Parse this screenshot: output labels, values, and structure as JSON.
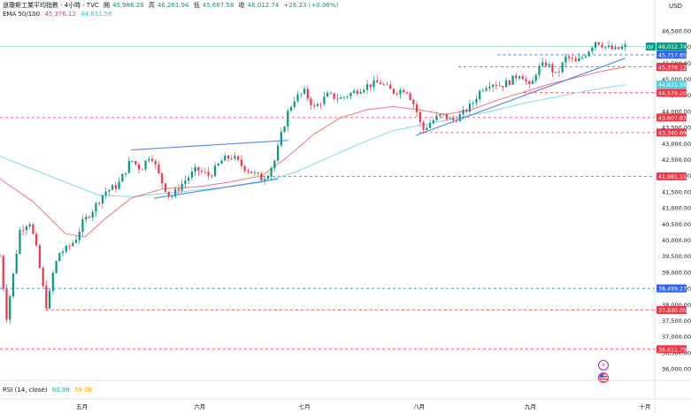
{
  "header": {
    "title": "道瓊斯工業平均指數 · 4小時 · TVC",
    "ohlc_open_label": "開",
    "ohlc_open": "45,986.28",
    "ohlc_high_label": "高",
    "ohlc_high": "46,261.94",
    "ohlc_low_label": "低",
    "ohlc_low": "45,687.58",
    "ohlc_close_label": "收",
    "ohlc_close": "46,012.74",
    "change": "+26.23 (+0.06%)"
  },
  "indicators": {
    "ema_label": "EMA 50/100",
    "ema50_value": "45,376.12",
    "ema100_value": "44,831.56",
    "rsi_label": "RSI (14, close)",
    "rsi_value1": "60.99",
    "rsi_value2": "59.08"
  },
  "currency": "USD",
  "colors": {
    "up": "#089981",
    "down": "#f23645",
    "ema50": "#f23645",
    "ema100": "#7fdbea",
    "trend": "#5b8def",
    "price_line": "#3ab6a8"
  },
  "icons": [
    "lightning-icon",
    "us-flag-icon"
  ],
  "chart_data": {
    "type": "candlestick",
    "title": "",
    "xlabel": "",
    "ylabel": "",
    "ylim": [
      35700,
      46800
    ],
    "yticks": [
      36000,
      36500,
      37000,
      37500,
      38000,
      38500,
      39000,
      39500,
      40000,
      40500,
      41000,
      41500,
      42000,
      42500,
      43000,
      43500,
      44000,
      44500,
      45000,
      45500,
      46000,
      46500
    ],
    "ytick_labels": [
      "36,000.00",
      "36,500.00",
      "37,000.00",
      "37,500.00",
      "38,000.00",
      "38,500.00",
      "39,000.00",
      "39,500.00",
      "40,000.00",
      "40,500.00",
      "41,000.00",
      "41,500.00",
      "42,000.00",
      "42,500.00",
      "43,000.00",
      "43,500.00",
      "44,000.00",
      "44,500.00",
      "45,000.00",
      "45,500.00",
      "46,000.00",
      "46,500.00"
    ],
    "months": [
      "五月",
      "六月",
      "七月",
      "八月",
      "九月",
      "十月"
    ],
    "month_positions": [
      0.125,
      0.305,
      0.465,
      0.64,
      0.81,
      0.985
    ],
    "close_path": [
      [
        0.0,
        39500
      ],
      [
        0.01,
        37600
      ],
      [
        0.02,
        38900
      ],
      [
        0.03,
        40300
      ],
      [
        0.045,
        40600
      ],
      [
        0.055,
        39800
      ],
      [
        0.065,
        38600
      ],
      [
        0.072,
        37830
      ],
      [
        0.08,
        38900
      ],
      [
        0.09,
        39600
      ],
      [
        0.1,
        39700
      ],
      [
        0.115,
        40000
      ],
      [
        0.125,
        40500
      ],
      [
        0.14,
        40900
      ],
      [
        0.16,
        41500
      ],
      [
        0.18,
        41700
      ],
      [
        0.2,
        42500
      ],
      [
        0.215,
        42200
      ],
      [
        0.23,
        42700
      ],
      [
        0.245,
        41900
      ],
      [
        0.26,
        41300
      ],
      [
        0.28,
        41800
      ],
      [
        0.3,
        42200
      ],
      [
        0.32,
        42000
      ],
      [
        0.34,
        42500
      ],
      [
        0.355,
        42600
      ],
      [
        0.37,
        42300
      ],
      [
        0.385,
        42100
      ],
      [
        0.4,
        41900
      ],
      [
        0.41,
        42100
      ],
      [
        0.42,
        42500
      ],
      [
        0.43,
        43300
      ],
      [
        0.44,
        44000
      ],
      [
        0.45,
        44400
      ],
      [
        0.465,
        44600
      ],
      [
        0.48,
        44100
      ],
      [
        0.5,
        44500
      ],
      [
        0.52,
        44400
      ],
      [
        0.54,
        44600
      ],
      [
        0.56,
        44800
      ],
      [
        0.58,
        44900
      ],
      [
        0.6,
        44600
      ],
      [
        0.62,
        44700
      ],
      [
        0.635,
        44100
      ],
      [
        0.645,
        43400
      ],
      [
        0.66,
        43700
      ],
      [
        0.675,
        43900
      ],
      [
        0.69,
        43700
      ],
      [
        0.705,
        43900
      ],
      [
        0.72,
        44200
      ],
      [
        0.735,
        44700
      ],
      [
        0.75,
        44900
      ],
      [
        0.765,
        44800
      ],
      [
        0.78,
        44950
      ],
      [
        0.795,
        45200
      ],
      [
        0.81,
        44700
      ],
      [
        0.82,
        45300
      ],
      [
        0.835,
        45500
      ],
      [
        0.85,
        45100
      ],
      [
        0.865,
        45700
      ],
      [
        0.88,
        45500
      ],
      [
        0.895,
        45800
      ],
      [
        0.91,
        46200
      ],
      [
        0.925,
        46000
      ],
      [
        0.94,
        45900
      ],
      [
        0.955,
        46012.74
      ]
    ],
    "ema50_path": [
      [
        0.0,
        41900
      ],
      [
        0.05,
        41200
      ],
      [
        0.1,
        40200
      ],
      [
        0.13,
        40100
      ],
      [
        0.16,
        40650
      ],
      [
        0.2,
        41300
      ],
      [
        0.25,
        41600
      ],
      [
        0.3,
        41650
      ],
      [
        0.35,
        41800
      ],
      [
        0.4,
        42000
      ],
      [
        0.44,
        42600
      ],
      [
        0.48,
        43300
      ],
      [
        0.52,
        43800
      ],
      [
        0.56,
        44050
      ],
      [
        0.6,
        44150
      ],
      [
        0.64,
        44050
      ],
      [
        0.68,
        43900
      ],
      [
        0.72,
        44050
      ],
      [
        0.76,
        44350
      ],
      [
        0.8,
        44600
      ],
      [
        0.84,
        44850
      ],
      [
        0.88,
        45050
      ],
      [
        0.92,
        45250
      ],
      [
        0.955,
        45376.12
      ]
    ],
    "ema100_path": [
      [
        0.0,
        42600
      ],
      [
        0.05,
        42200
      ],
      [
        0.1,
        41800
      ],
      [
        0.15,
        41400
      ],
      [
        0.2,
        41350
      ],
      [
        0.25,
        41450
      ],
      [
        0.3,
        41550
      ],
      [
        0.35,
        41650
      ],
      [
        0.4,
        41800
      ],
      [
        0.45,
        42100
      ],
      [
        0.5,
        42550
      ],
      [
        0.55,
        43000
      ],
      [
        0.6,
        43400
      ],
      [
        0.65,
        43600
      ],
      [
        0.7,
        43800
      ],
      [
        0.75,
        44000
      ],
      [
        0.8,
        44250
      ],
      [
        0.85,
        44450
      ],
      [
        0.9,
        44650
      ],
      [
        0.955,
        44831.56
      ]
    ],
    "trendlines": [
      {
        "from": [
          0.2,
          42800
        ],
        "to": [
          0.44,
          43100
        ]
      },
      {
        "from": [
          0.235,
          41300
        ],
        "to": [
          0.425,
          41900
        ]
      },
      {
        "from": [
          0.635,
          43250
        ],
        "to": [
          0.955,
          45650
        ]
      }
    ],
    "horizontal_levels": [
      {
        "value": 45757.85,
        "label": "45,757.85",
        "color": "#2962ff",
        "from": 0.76
      },
      {
        "value": 45384.51,
        "label": "45,384.51",
        "color": "#f23645",
        "from": 0.7
      },
      {
        "value": 44579.2,
        "label": "44,579.20",
        "color": "#f23645",
        "from": 0.8
      },
      {
        "value": 43807.83,
        "label": "43,807.83",
        "color": "#f23645",
        "from": 0.0
      },
      {
        "value": 43340.69,
        "label": "43,340.69",
        "color": "#f23645",
        "from": 0.64
      },
      {
        "value": 41981.15,
        "label": "41,981.15",
        "color": "#f23645",
        "from": 0.4
      },
      {
        "value": 38499.27,
        "label": "38,499.27",
        "color": "#2962ff",
        "from": 0.0
      },
      {
        "value": 37830.0,
        "label": "37,830.00",
        "color": "#f23645",
        "from": 0.07
      },
      {
        "value": 36611.79,
        "label": "36,611.79",
        "color": "#f23645",
        "from": 0.0
      }
    ],
    "price_tags": [
      {
        "value": 46012.74,
        "label": "46,012.74",
        "prefix": "DJI",
        "color": "#089981"
      },
      {
        "value": 45376.12,
        "label": "45,376.12",
        "color": "#f23645"
      },
      {
        "value": 44831.56,
        "label": "44,831.56",
        "color": "#4dd0e1"
      }
    ]
  }
}
